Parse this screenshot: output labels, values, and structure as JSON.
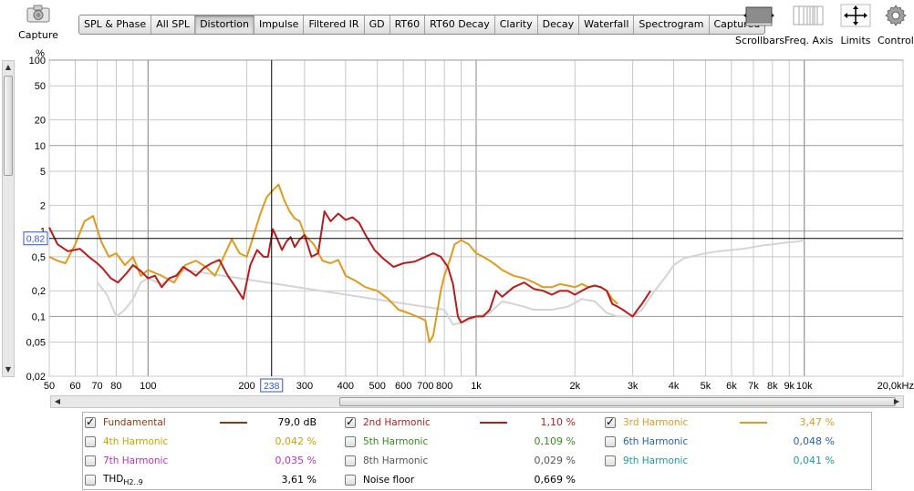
{
  "toolbar": {
    "capture_label": "Capture",
    "tabs": [
      "SPL & Phase",
      "All SPL",
      "Distortion",
      "Impulse",
      "Filtered IR",
      "GD",
      "RT60",
      "RT60 Decay",
      "Clarity",
      "Decay",
      "Waterfall",
      "Spectrogram",
      "Captured"
    ],
    "active_tab": "Distortion",
    "tools": [
      {
        "label": "Scrollbars",
        "icon": "scrollbars-icon"
      },
      {
        "label": "Freq. Axis",
        "icon": "freq-axis-icon"
      },
      {
        "label": "Limits",
        "icon": "limits-icon"
      },
      {
        "label": "Controls",
        "icon": "gear-icon"
      }
    ]
  },
  "chart_data": {
    "type": "line",
    "ylabel": "%",
    "xunit": "Hz",
    "yscale": "log",
    "xscale": "log",
    "ylim": [
      0.02,
      100
    ],
    "xlim": [
      50,
      20000
    ],
    "y_ticks": [
      "100",
      "50",
      "20",
      "10",
      "5",
      "2",
      "1",
      "0,5",
      "0,2",
      "0,1",
      "0,05",
      "0,02"
    ],
    "y_tick_values": [
      100,
      50,
      20,
      10,
      5,
      2,
      1,
      0.5,
      0.2,
      0.1,
      0.05,
      0.02
    ],
    "x_ticks": [
      "50",
      "60",
      "70",
      "80",
      "100",
      "200",
      "300",
      "400",
      "500",
      "600",
      "700",
      "800",
      "1k",
      "2k",
      "3k",
      "4k",
      "5k",
      "6k",
      "7k",
      "8k",
      "9k",
      "10k",
      "20,0kHz"
    ],
    "x_tick_values": [
      50,
      60,
      70,
      80,
      100,
      200,
      300,
      400,
      500,
      600,
      700,
      800,
      1000,
      2000,
      3000,
      4000,
      5000,
      6000,
      7000,
      8000,
      9000,
      10000,
      20000
    ],
    "cursor": {
      "x": 238,
      "y": 0.82,
      "x_label": "238",
      "y_label": "0,82"
    },
    "grid": true,
    "series": [
      {
        "name": "2nd Harmonic",
        "color": "#b81c1c",
        "x": [
          50,
          53,
          57,
          62,
          66,
          70,
          73,
          77,
          81,
          86,
          90,
          95,
          100,
          105,
          110,
          116,
          122,
          128,
          134,
          140,
          148,
          156,
          165,
          175,
          185,
          195,
          205,
          215,
          225,
          232,
          240,
          248,
          256,
          264,
          272,
          280,
          290,
          300,
          315,
          330,
          345,
          360,
          380,
          400,
          420,
          440,
          460,
          490,
          520,
          560,
          600,
          650,
          700,
          740,
          780,
          820,
          850,
          880,
          900,
          950,
          1000,
          1050,
          1100,
          1150,
          1200,
          1300,
          1400,
          1500,
          1600,
          1700,
          1800,
          1900,
          2000,
          2100,
          2200,
          2300,
          2400,
          2500,
          2600,
          2700,
          2800,
          3000,
          3100,
          3200,
          3400,
          3600,
          3800,
          4000,
          4300,
          4600,
          5000,
          5500,
          6000,
          6500,
          7000,
          7500,
          8000,
          8500,
          9000,
          9500
        ],
        "y": [
          1.1,
          0.7,
          0.58,
          0.62,
          0.5,
          0.42,
          0.36,
          0.28,
          0.25,
          0.32,
          0.4,
          0.34,
          0.28,
          0.3,
          0.22,
          0.28,
          0.3,
          0.38,
          0.34,
          0.3,
          0.37,
          0.42,
          0.46,
          0.3,
          0.22,
          0.16,
          0.4,
          0.6,
          0.5,
          0.5,
          1.05,
          0.8,
          0.6,
          0.75,
          0.85,
          0.65,
          0.8,
          0.9,
          0.5,
          0.55,
          1.7,
          1.3,
          1.6,
          1.35,
          1.45,
          1.25,
          0.9,
          0.6,
          0.48,
          0.38,
          0.42,
          0.44,
          0.5,
          0.55,
          0.5,
          0.38,
          0.24,
          0.1,
          0.085,
          0.095,
          0.1,
          0.1,
          0.12,
          0.2,
          0.17,
          0.22,
          0.25,
          0.21,
          0.2,
          0.18,
          0.2,
          0.2,
          0.18,
          0.2,
          0.22,
          0.23,
          0.22,
          0.2,
          0.14,
          0.13,
          0.12,
          0.1,
          0.12,
          0.14,
          0.2,
          null,
          null,
          null,
          null,
          null,
          null,
          null,
          null,
          null,
          null,
          null,
          null,
          null,
          null,
          null
        ]
      },
      {
        "name": "3rd Harmonic",
        "color": "#e09a1c",
        "x": [
          50,
          53,
          56,
          60,
          64,
          68,
          72,
          76,
          80,
          85,
          90,
          95,
          100,
          110,
          120,
          130,
          140,
          150,
          160,
          170,
          180,
          190,
          200,
          210,
          220,
          230,
          240,
          250,
          260,
          270,
          280,
          290,
          300,
          320,
          340,
          360,
          380,
          400,
          430,
          460,
          500,
          540,
          580,
          620,
          660,
          700,
          720,
          740,
          760,
          780,
          800,
          830,
          860,
          900,
          950,
          1000,
          1050,
          1100,
          1150,
          1200,
          1300,
          1400,
          1500,
          1600,
          1700,
          1800,
          1900,
          2000,
          2100,
          2200,
          2300,
          2400,
          2500,
          2600,
          2700
        ],
        "y": [
          0.5,
          0.45,
          0.42,
          0.7,
          1.3,
          1.5,
          0.75,
          0.5,
          0.55,
          0.4,
          0.5,
          0.3,
          0.35,
          0.3,
          0.25,
          0.4,
          0.45,
          0.38,
          0.3,
          0.5,
          0.8,
          0.55,
          0.5,
          0.9,
          1.6,
          2.5,
          3.0,
          3.5,
          2.3,
          1.7,
          1.4,
          1.3,
          0.9,
          0.7,
          0.45,
          0.42,
          0.46,
          0.3,
          0.26,
          0.22,
          0.2,
          0.16,
          0.12,
          0.11,
          0.1,
          0.09,
          0.05,
          0.06,
          0.11,
          0.2,
          0.3,
          0.45,
          0.7,
          0.78,
          0.7,
          0.55,
          0.5,
          0.45,
          0.4,
          0.35,
          0.3,
          0.28,
          0.25,
          0.22,
          0.22,
          0.24,
          0.23,
          0.22,
          0.24,
          0.22,
          0.23,
          0.22,
          0.2,
          0.16,
          0.14
        ]
      },
      {
        "name": "Fundamental",
        "color": "#d4d4d4",
        "x": [
          70,
          75,
          80,
          85,
          90,
          95,
          100,
          110,
          120,
          130,
          800,
          850,
          900,
          950,
          1000,
          1100,
          1200,
          1300,
          1400,
          1500,
          1700,
          1900,
          2100,
          2300,
          2500,
          2700,
          3000,
          3200,
          3500,
          3800,
          4000,
          4300,
          4700,
          5000,
          5500,
          6000,
          6500,
          7000,
          7500,
          8000,
          8500,
          9000,
          9500,
          10000
        ],
        "y": [
          0.25,
          0.18,
          0.1,
          0.12,
          0.16,
          0.25,
          0.28,
          0.24,
          0.3,
          0.35,
          0.12,
          0.08,
          0.085,
          0.09,
          0.1,
          0.11,
          0.15,
          0.14,
          0.13,
          0.12,
          0.12,
          0.13,
          0.16,
          0.15,
          0.11,
          0.1,
          0.1,
          0.12,
          0.2,
          0.3,
          0.4,
          0.48,
          0.52,
          0.55,
          0.58,
          0.6,
          0.62,
          0.65,
          0.68,
          0.7,
          0.72,
          0.74,
          0.75,
          0.78
        ]
      }
    ]
  },
  "legend": {
    "items": [
      {
        "label": "Fundamental",
        "value": "79,0 dB",
        "color": "#8b3a0e",
        "checked": true,
        "line": true
      },
      {
        "label": "2nd Harmonic",
        "value": "1,10 %",
        "color": "#b81c1c",
        "checked": true,
        "line": true
      },
      {
        "label": "3rd Harmonic",
        "value": "3,47 %",
        "color": "#e09a1c",
        "checked": true,
        "line": true
      },
      {
        "label": "4th Harmonic",
        "value": "0,042 %",
        "color": "#c9a400",
        "checked": false,
        "line": false
      },
      {
        "label": "5th Harmonic",
        "value": "0,109 %",
        "color": "#3a8a1e",
        "checked": false,
        "line": false
      },
      {
        "label": "6th Harmonic",
        "value": "0,048 %",
        "color": "#2a5fa8",
        "checked": false,
        "line": false
      },
      {
        "label": "7th Harmonic",
        "value": "0,035 %",
        "color": "#c22ec2",
        "checked": false,
        "line": false
      },
      {
        "label": "8th Harmonic",
        "value": "0,029 %",
        "color": "#555555",
        "checked": false,
        "line": false
      },
      {
        "label": "9th Harmonic",
        "value": "0,041 %",
        "color": "#1a9e9e",
        "checked": false,
        "line": false
      },
      {
        "label": "THD",
        "label_sub": "H2..9",
        "value": "3,61 %",
        "color": "#000000",
        "checked": false,
        "line": false
      },
      {
        "label": "Noise floor",
        "value": "0,669 %",
        "color": "#000000",
        "checked": false,
        "line": false
      }
    ]
  }
}
